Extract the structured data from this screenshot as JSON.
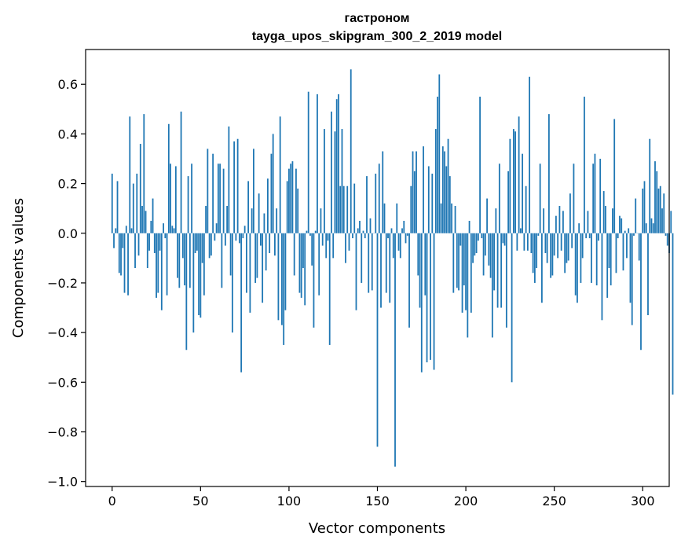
{
  "chart_data": {
    "type": "bar",
    "title": "гастроном",
    "subtitle": "tayga_upos_skipgram_300_2_2019 model",
    "xlabel": "Vector components",
    "ylabel": "Components values",
    "xlim": [
      -15,
      315
    ],
    "ylim": [
      -1.02,
      0.74
    ],
    "xticks": [
      0,
      50,
      100,
      150,
      200,
      250,
      300
    ],
    "xtick_labels": [
      "0",
      "50",
      "100",
      "150",
      "200",
      "250",
      "300"
    ],
    "yticks": [
      -1.0,
      -0.8,
      -0.6,
      -0.4,
      -0.2,
      0.0,
      0.2,
      0.4,
      0.6
    ],
    "ytick_labels": [
      "−1.0",
      "−0.8",
      "−0.6",
      "−0.4",
      "−0.2",
      "0.0",
      "0.2",
      "0.4",
      "0.6"
    ],
    "bar_color": "#1f77b4",
    "grid": false,
    "values": [
      0.24,
      -0.06,
      0.02,
      0.21,
      -0.16,
      -0.17,
      -0.06,
      -0.24,
      0.03,
      -0.25,
      0.47,
      0.02,
      0.2,
      -0.14,
      0.24,
      -0.09,
      0.36,
      0.11,
      0.48,
      0.09,
      -0.14,
      -0.07,
      0.05,
      0.14,
      -0.08,
      -0.26,
      -0.24,
      -0.07,
      -0.31,
      0.04,
      -0.02,
      -0.25,
      0.44,
      0.28,
      0.03,
      0.02,
      0.27,
      -0.18,
      -0.22,
      0.49,
      -0.1,
      -0.21,
      -0.47,
      0.23,
      -0.22,
      0.28,
      -0.4,
      -0.08,
      -0.07,
      -0.33,
      -0.34,
      -0.12,
      -0.25,
      0.11,
      0.34,
      -0.1,
      -0.09,
      0.32,
      -0.03,
      0.04,
      0.28,
      0.28,
      -0.22,
      0.26,
      -0.05,
      0.11,
      0.43,
      -0.17,
      -0.4,
      0.37,
      -0.03,
      0.38,
      -0.04,
      -0.56,
      -0.02,
      0.03,
      -0.24,
      0.21,
      -0.32,
      0.1,
      0.34,
      -0.2,
      -0.18,
      0.16,
      -0.05,
      -0.28,
      0.08,
      -0.15,
      0.22,
      -0.08,
      0.32,
      0.4,
      -0.09,
      0.1,
      -0.35,
      0.47,
      -0.37,
      -0.45,
      -0.31,
      0.21,
      0.26,
      0.28,
      0.29,
      -0.17,
      0.26,
      0.18,
      -0.24,
      -0.26,
      -0.14,
      -0.29,
      0.01,
      0.57,
      -0.01,
      -0.13,
      -0.38,
      0.01,
      0.56,
      -0.25,
      0.1,
      -0.05,
      0.42,
      -0.1,
      -0.03,
      -0.45,
      0.49,
      -0.1,
      0.41,
      0.54,
      0.56,
      0.19,
      0.42,
      0.19,
      -0.12,
      0.19,
      -0.07,
      0.66,
      -0.02,
      0.2,
      -0.31,
      0.02,
      0.05,
      -0.2,
      0.01,
      -0.02,
      0.23,
      -0.24,
      0.06,
      -0.23,
      0.0,
      0.24,
      -0.86,
      0.28,
      -0.3,
      0.33,
      0.12,
      -0.24,
      -0.02,
      -0.28,
      0.02,
      -0.1,
      -0.94,
      0.12,
      -0.07,
      -0.1,
      0.02,
      0.05,
      -0.04,
      -0.01,
      -0.38,
      0.19,
      0.33,
      0.25,
      0.33,
      -0.17,
      -0.3,
      -0.56,
      0.35,
      -0.25,
      -0.52,
      0.27,
      -0.51,
      0.24,
      -0.55,
      0.42,
      0.55,
      0.64,
      0.12,
      0.35,
      0.33,
      0.27,
      0.38,
      0.23,
      0.12,
      -0.24,
      0.11,
      -0.22,
      -0.23,
      -0.05,
      -0.32,
      -0.21,
      -0.31,
      -0.42,
      0.05,
      -0.32,
      -0.12,
      -0.09,
      -0.08,
      -0.03,
      0.55,
      -0.02,
      -0.17,
      -0.09,
      0.14,
      -0.13,
      -0.18,
      -0.42,
      -0.23,
      0.1,
      -0.3,
      0.28,
      -0.3,
      -0.04,
      -0.05,
      -0.38,
      0.25,
      0.38,
      -0.6,
      0.42,
      0.41,
      -0.07,
      0.47,
      0.02,
      0.32,
      -0.07,
      0.19,
      -0.07,
      0.63,
      -0.08,
      -0.16,
      -0.2,
      -0.14,
      -0.01,
      0.28,
      -0.28,
      0.1,
      -0.08,
      -0.12,
      0.48,
      -0.18,
      -0.17,
      -0.09,
      0.07,
      -0.1,
      0.11,
      -0.07,
      0.09,
      -0.16,
      -0.12,
      -0.11,
      0.16,
      -0.06,
      0.28,
      -0.25,
      -0.28,
      0.04,
      -0.2,
      -0.1,
      0.55,
      -0.02,
      0.09,
      -0.02,
      -0.2,
      0.28,
      0.32,
      -0.21,
      -0.03,
      0.3,
      -0.35,
      0.17,
      0.11,
      -0.26,
      -0.14,
      -0.21,
      0.1,
      0.46,
      -0.16,
      -0.02,
      0.07,
      0.06,
      -0.15,
      0.01,
      -0.1,
      0.02,
      -0.28,
      -0.37,
      -0.01,
      0.14,
      0.0,
      -0.11,
      -0.47,
      0.18,
      0.21,
      0.04,
      -0.33,
      0.38,
      0.06,
      0.04,
      0.29,
      0.25,
      0.18,
      0.19,
      0.1,
      0.16,
      -0.01,
      -0.05,
      -0.08,
      0.09,
      -0.65
    ]
  }
}
